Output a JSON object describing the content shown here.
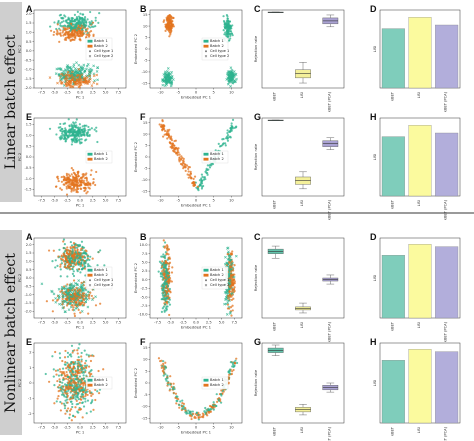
{
  "sections": [
    {
      "title": "Linear batch effect"
    },
    {
      "title": "Nonlinear batch effect"
    }
  ],
  "colors": {
    "batch1": "#2db38f",
    "batch2": "#e3741f",
    "box_green": "#63c4ac",
    "box_yellow": "#f4f09a",
    "box_purple": "#aaa2d3",
    "bar_green": "#7fcdbb",
    "bar_yellow": "#fbfa9e",
    "bar_purple": "#b2aedb"
  },
  "chart_data": [
    {
      "label": "A",
      "type": "scatter",
      "xlabel": "PC 1",
      "ylabel": "PC 2",
      "xticks": [
        "-7.5",
        "-5.0",
        "-2.5",
        "0.0",
        "2.5",
        "5.0",
        "7.5"
      ],
      "yticks": [
        "-2.0",
        "-1.5",
        "-1.0",
        "-0.5",
        "0.0",
        "0.5",
        "1.0",
        "1.5",
        "2.0"
      ],
      "xlim": [
        -9,
        9
      ],
      "ylim": [
        -2,
        2.2
      ],
      "legend": [
        "Batch 1",
        "Batch 2",
        "Cell type 1",
        "Cell type 2"
      ],
      "clusters": [
        {
          "series": "Batch 1",
          "marker": "circle",
          "cx": -1,
          "cy": 1.5,
          "sx": 3.2,
          "sy": 0.22,
          "n": 180
        },
        {
          "series": "Batch 2",
          "marker": "circle",
          "cx": -1,
          "cy": 1.0,
          "sx": 3.2,
          "sy": 0.22,
          "n": 180
        },
        {
          "series": "Batch 1",
          "marker": "x",
          "cx": -1,
          "cy": -1.2,
          "sx": 3.2,
          "sy": 0.22,
          "n": 170
        },
        {
          "series": "Batch 2",
          "marker": "x",
          "cx": -1,
          "cy": -1.6,
          "sx": 3.2,
          "sy": 0.22,
          "n": 170
        }
      ]
    },
    {
      "label": "B",
      "type": "scatter",
      "xlabel": "Embedded PC 1",
      "ylabel": "Embedded PC 2",
      "xticks": [
        "-10",
        "-5",
        "0",
        "5",
        "10"
      ],
      "yticks": [
        "-15",
        "-10",
        "-5",
        "0",
        "5",
        "10",
        "15"
      ],
      "xlim": [
        -13,
        13
      ],
      "ylim": [
        -17,
        17
      ],
      "legend": [
        "Batch 1",
        "Batch 2",
        "Cell type 1",
        "Cell type 2"
      ],
      "clusters": [
        {
          "series": "Batch 2",
          "marker": "circle",
          "cx": -7.5,
          "cy": 11,
          "sx": 1.0,
          "sy": 2.0,
          "n": 120
        },
        {
          "series": "Batch 1",
          "marker": "circle",
          "cx": 9,
          "cy": 9,
          "sx": 0.9,
          "sy": 2.2,
          "n": 110
        },
        {
          "series": "Batch 1",
          "marker": "x",
          "cx": -8,
          "cy": -13,
          "sx": 1.2,
          "sy": 1.6,
          "n": 100
        },
        {
          "series": "Batch 1",
          "marker": "x",
          "cx": 10,
          "cy": -12,
          "sx": 1.0,
          "sy": 1.6,
          "n": 90
        }
      ]
    },
    {
      "label": "C",
      "type": "box",
      "ylabel": "Rejection rate",
      "categories": [
        "kBET",
        "LISI",
        "kBET (PCA)"
      ],
      "boxes": [
        {
          "q1": 0.99,
          "med": 0.995,
          "q3": 1.0,
          "lo": 0.99,
          "hi": 1.0
        },
        {
          "q1": 0.11,
          "med": 0.17,
          "q3": 0.22,
          "lo": 0.04,
          "hi": 0.32
        },
        {
          "q1": 0.84,
          "med": 0.88,
          "q3": 0.92,
          "lo": 0.8,
          "hi": 0.96
        }
      ]
    },
    {
      "label": "D",
      "type": "bar",
      "ylabel": "LISI",
      "categories": [
        "kBET",
        "LISI",
        "kBET (PCA)"
      ],
      "values": [
        0.99,
        1.18,
        1.05
      ],
      "ylim": [
        0,
        1.3
      ]
    },
    {
      "label": "E",
      "type": "scatter",
      "xlabel": "PC 1",
      "ylabel": "PC 2",
      "xticks": [
        "-7.5",
        "-5.0",
        "-2.5",
        "0.0",
        "2.5",
        "5.0",
        "7.5"
      ],
      "yticks": [
        "-1.5",
        "-1.0",
        "-0.5",
        "0.0",
        "0.5",
        "1.0",
        "1.5"
      ],
      "xlim": [
        -9,
        9
      ],
      "ylim": [
        -1.8,
        1.8
      ],
      "legend": [
        "Batch 1",
        "Batch 2"
      ],
      "clusters": [
        {
          "series": "Batch 1",
          "marker": "circle",
          "cx": -1,
          "cy": 1.1,
          "sx": 2.8,
          "sy": 0.22,
          "n": 220
        },
        {
          "series": "Batch 2",
          "marker": "circle",
          "cx": -1,
          "cy": -1.15,
          "sx": 2.8,
          "sy": 0.22,
          "n": 220
        }
      ]
    },
    {
      "label": "F",
      "type": "scatter",
      "xlabel": "Embedded PC 1",
      "ylabel": "Embedded PC 2",
      "xticks": [
        "-10",
        "-5",
        "0",
        "5",
        "10"
      ],
      "yticks": [
        "-15",
        "-10",
        "-5",
        "0",
        "5",
        "10",
        "15"
      ],
      "xlim": [
        -13,
        13
      ],
      "ylim": [
        -17,
        17
      ],
      "legend": [
        "Batch 1",
        "Batch 2"
      ],
      "curve": {
        "shape": "v",
        "x0": -10,
        "x1": 11,
        "ymin": -14,
        "ymax": 15,
        "split_x": 0,
        "left_series": "Batch 2",
        "right_series": "Batch 1",
        "n": 240
      }
    },
    {
      "label": "G",
      "type": "box",
      "ylabel": "Rejection rate",
      "categories": [
        "kBET",
        "LISI",
        "kBET (PCA)"
      ],
      "boxes": [
        {
          "q1": 0.99,
          "med": 0.995,
          "q3": 1.0,
          "lo": 0.99,
          "hi": 1.0
        },
        {
          "q1": 0.13,
          "med": 0.18,
          "q3": 0.23,
          "lo": 0.07,
          "hi": 0.3
        },
        {
          "q1": 0.64,
          "med": 0.68,
          "q3": 0.72,
          "lo": 0.6,
          "hi": 0.76
        }
      ]
    },
    {
      "label": "H",
      "type": "bar",
      "ylabel": "LISI",
      "categories": [
        "kBET",
        "LISI",
        "kBET (PCA)"
      ],
      "values": [
        0.99,
        1.18,
        1.05
      ],
      "ylim": [
        0,
        1.3
      ]
    },
    {
      "label": "A",
      "type": "scatter",
      "xlabel": "PC 1",
      "ylabel": "PC 2",
      "xticks": [
        "-7.5",
        "-5.0",
        "-2.5",
        "0.0",
        "2.5",
        "5.0",
        "7.5"
      ],
      "yticks": [
        "-2.0",
        "-1.5",
        "-1.0",
        "-0.5",
        "0.0",
        "0.5",
        "1.0",
        "1.5",
        "2.0"
      ],
      "xlim": [
        -9,
        9
      ],
      "ylim": [
        -2.4,
        2.4
      ],
      "legend": [
        "Batch 1",
        "Batch 2",
        "Cell type 1",
        "Cell type 2"
      ],
      "clusters": [
        {
          "series": "Batch 1",
          "marker": "circle",
          "cx": -1,
          "cy": 1.1,
          "sx": 3.0,
          "sy": 0.45,
          "n": 200
        },
        {
          "series": "Batch 2",
          "marker": "circle",
          "cx": -1.5,
          "cy": 1.3,
          "sx": 2.4,
          "sy": 0.35,
          "n": 170
        },
        {
          "series": "Batch 1",
          "marker": "x",
          "cx": -1,
          "cy": -1.1,
          "sx": 3.0,
          "sy": 0.4,
          "n": 200
        },
        {
          "series": "Batch 2",
          "marker": "circle",
          "cx": -1,
          "cy": -1.2,
          "sx": 2.8,
          "sy": 0.35,
          "n": 170
        }
      ]
    },
    {
      "label": "B",
      "type": "scatter",
      "xlabel": "Embedded PC 1",
      "ylabel": "Embedded PC 2",
      "xticks": [
        "-7.5",
        "-5.0",
        "-2.5",
        "0.0",
        "2.5",
        "5.0",
        "7.5"
      ],
      "yticks": [
        "-10.0",
        "-7.5",
        "-5.0",
        "-2.5",
        "0.0",
        "2.5",
        "5.0",
        "7.5",
        "10.0"
      ],
      "xlim": [
        -9,
        9
      ],
      "ylim": [
        -11,
        12
      ],
      "legend": [
        "Batch 1",
        "Batch 2",
        "Cell type 1",
        "Cell type 2"
      ],
      "clusters": [
        {
          "series": "Batch 1",
          "marker": "circle",
          "cx": -6,
          "cy": 0,
          "sx": 0.8,
          "sy": 4.5,
          "n": 160
        },
        {
          "series": "Batch 2",
          "marker": "circle",
          "cx": -5.8,
          "cy": 0.5,
          "sx": 0.8,
          "sy": 4.5,
          "n": 140
        },
        {
          "series": "Batch 1",
          "marker": "x",
          "cx": 6.5,
          "cy": 0.5,
          "sx": 0.7,
          "sy": 4.5,
          "n": 150
        },
        {
          "series": "Batch 2",
          "marker": "circle",
          "cx": 6.8,
          "cy": 0,
          "sx": 0.7,
          "sy": 4.2,
          "n": 130
        }
      ]
    },
    {
      "label": "C",
      "type": "box",
      "ylabel": "Rejection rate",
      "categories": [
        "kBET",
        "LISI",
        "kBET (PCA)"
      ],
      "boxes": [
        {
          "q1": 0.82,
          "med": 0.85,
          "q3": 0.88,
          "lo": 0.76,
          "hi": 0.92
        },
        {
          "q1": 0.08,
          "med": 0.1,
          "q3": 0.12,
          "lo": 0.04,
          "hi": 0.17
        },
        {
          "q1": 0.46,
          "med": 0.48,
          "q3": 0.5,
          "lo": 0.42,
          "hi": 0.54
        }
      ]
    },
    {
      "label": "D",
      "type": "bar",
      "ylabel": "LISI",
      "categories": [
        "kBET",
        "LISI",
        "kBET (PCA)"
      ],
      "values": [
        1.02,
        1.2,
        1.16
      ],
      "ylim": [
        0,
        1.3
      ]
    },
    {
      "label": "E",
      "type": "scatter",
      "xlabel": "PC 1",
      "ylabel": "PC 2",
      "xticks": [
        "-7.5",
        "-5.0",
        "-2.5",
        "0.0",
        "2.5",
        "5.0",
        "7.5"
      ],
      "yticks": [
        "-2",
        "-1",
        "0",
        "1",
        "2"
      ],
      "xlim": [
        -9,
        9
      ],
      "ylim": [
        -2.6,
        2.6
      ],
      "legend": [
        "Batch 1",
        "Batch 2"
      ],
      "clusters": [
        {
          "series": "Batch 1",
          "marker": "circle",
          "cx": -1,
          "cy": 0,
          "sx": 3.2,
          "sy": 1.0,
          "n": 260
        },
        {
          "series": "Batch 2",
          "marker": "circle",
          "cx": -1,
          "cy": 0,
          "sx": 3.2,
          "sy": 1.0,
          "n": 260
        }
      ]
    },
    {
      "label": "F",
      "type": "scatter",
      "xlabel": "Embedded PC 1",
      "ylabel": "Embedded PC 2",
      "xticks": [
        "-10",
        "-5",
        "0",
        "5",
        "10"
      ],
      "yticks": [
        "-15",
        "-10",
        "-5",
        "0",
        "5",
        "10",
        "15"
      ],
      "xlim": [
        -13,
        13
      ],
      "ylim": [
        -17,
        17
      ],
      "legend": [
        "Batch 1",
        "Batch 2"
      ],
      "curve": {
        "shape": "u",
        "x0": -10,
        "x1": 11,
        "ymin": -14,
        "ymax": 10,
        "split_x": 99,
        "left_series": "mixed",
        "right_series": "mixed",
        "n": 240
      }
    },
    {
      "label": "G",
      "type": "box",
      "ylabel": "Rejection rate",
      "categories": [
        "kBET",
        "LISI",
        "kBET (PCA)"
      ],
      "boxes": [
        {
          "q1": 0.9,
          "med": 0.93,
          "q3": 0.96,
          "lo": 0.86,
          "hi": 1.0
        },
        {
          "q1": 0.12,
          "med": 0.15,
          "q3": 0.18,
          "lo": 0.08,
          "hi": 0.22
        },
        {
          "q1": 0.41,
          "med": 0.44,
          "q3": 0.47,
          "lo": 0.38,
          "hi": 0.5
        }
      ]
    },
    {
      "label": "H",
      "type": "bar",
      "ylabel": "LISI",
      "categories": [
        "kBET",
        "LISI",
        "kBET (PCA)"
      ],
      "values": [
        1.02,
        1.2,
        1.16
      ],
      "ylim": [
        0,
        1.3
      ]
    }
  ]
}
